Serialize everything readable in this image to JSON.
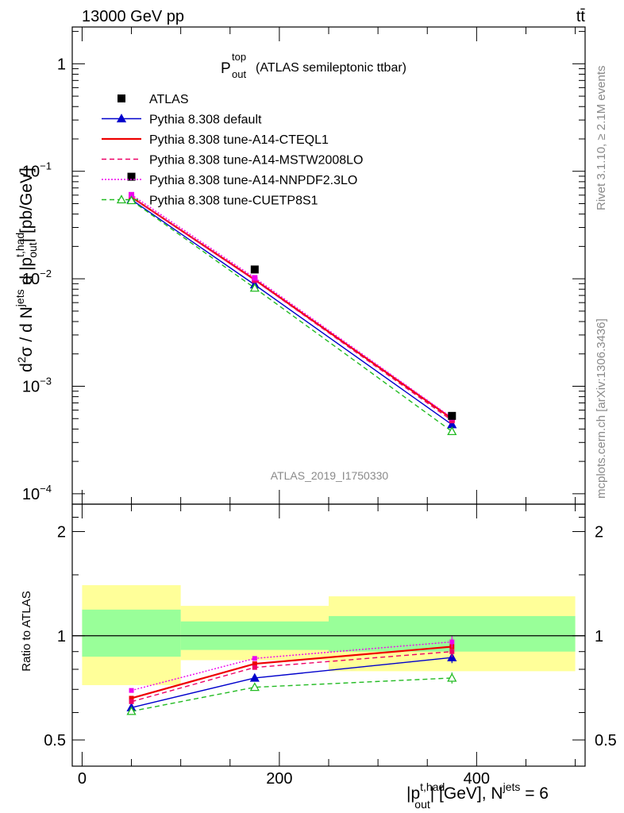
{
  "header": {
    "energy": "13000 GeV pp",
    "process": "tt̄",
    "rivet": "Rivet 3.1.10, ≥ 2.1M events",
    "site": "mcplots.cern.ch [arXiv:1306.3436]",
    "analysis": "ATLAS_2019_I1750330"
  },
  "plot_title": {
    "main": "P",
    "sup": "top",
    "sub": "out",
    "rest": "(ATLAS semileptonic ttbar)"
  },
  "axes": {
    "ylabel_main": "d²σ / d N^jets d |p_out^t,had| [pb/GeV]",
    "ylabel_ratio": "Ratio to ATLAS",
    "xlabel": "|p_out^t,had| [GeV], N^jets = 6",
    "main_ticks": [
      "1",
      "10^-1",
      "10^-2",
      "10^-3",
      "10^-4"
    ],
    "ratio_ticks": [
      "2",
      "1",
      "0.5"
    ],
    "x_ticks": [
      "0",
      "200",
      "400"
    ]
  },
  "legend": [
    {
      "label": "ATLAS",
      "color": "#000000",
      "marker": "square",
      "line": "none"
    },
    {
      "label": "Pythia 8.308 default",
      "color": "#0000cc",
      "marker": "triangle",
      "line": "solid"
    },
    {
      "label": "Pythia 8.308 tune-A14-CTEQL1",
      "color": "#ee0000",
      "marker": "none",
      "line": "solid-thick"
    },
    {
      "label": "Pythia 8.308 tune-A14-MSTW2008LO",
      "color": "#ee0066",
      "marker": "none",
      "line": "dashed"
    },
    {
      "label": "Pythia 8.308 tune-A14-NNPDF2.3LO",
      "color": "#ee00ee",
      "marker": "none",
      "line": "dotted"
    },
    {
      "label": "Pythia 8.308 tune-CUETP8S1",
      "color": "#22bb22",
      "marker": "open-triangle",
      "line": "dashed"
    }
  ],
  "chart_data": {
    "type": "line",
    "x_scale": "linear",
    "xlim": [
      -10,
      510
    ],
    "main": {
      "y_scale": "log",
      "ylim": [
        8e-05,
        2.2
      ],
      "data": {
        "x": [
          50,
          175,
          375
        ],
        "y": [
          0.089,
          0.0122,
          0.00053
        ],
        "bins": [
          [
            0,
            100
          ],
          [
            100,
            250
          ],
          [
            250,
            500
          ]
        ]
      },
      "series": [
        {
          "name": "Pythia 8.308 default",
          "x": [
            50,
            175,
            375
          ],
          "y": [
            0.0545,
            0.0088,
            0.00044
          ]
        },
        {
          "name": "Pythia 8.308 tune-A14-CTEQL1",
          "x": [
            50,
            175,
            375
          ],
          "y": [
            0.0576,
            0.0098,
            0.0005
          ]
        },
        {
          "name": "Pythia 8.308 tune-A14-MSTW2008LO",
          "x": [
            50,
            175,
            375
          ],
          "y": [
            0.0576,
            0.0097,
            0.00048
          ]
        },
        {
          "name": "Pythia 8.308 tune-A14-NNPDF2.3LO",
          "x": [
            50,
            175,
            375
          ],
          "y": [
            0.0605,
            0.0102,
            0.00051
          ]
        },
        {
          "name": "Pythia 8.308 tune-CUETP8S1",
          "x": [
            50,
            175,
            375
          ],
          "y": [
            0.0535,
            0.0082,
            0.00038
          ]
        }
      ]
    },
    "ratio": {
      "y_scale": "log",
      "ylim": [
        0.42,
        2.4
      ],
      "band_inner": [
        {
          "x": [
            0,
            100
          ],
          "lo": 0.87,
          "hi": 1.19
        },
        {
          "x": [
            100,
            250
          ],
          "lo": 0.91,
          "hi": 1.1
        },
        {
          "x": [
            250,
            500
          ],
          "lo": 0.9,
          "hi": 1.14
        }
      ],
      "band_outer": [
        {
          "x": [
            0,
            100
          ],
          "lo": 0.72,
          "hi": 1.4
        },
        {
          "x": [
            100,
            250
          ],
          "lo": 0.85,
          "hi": 1.22
        },
        {
          "x": [
            250,
            500
          ],
          "lo": 0.79,
          "hi": 1.3
        }
      ],
      "series": [
        {
          "name": "Pythia 8.308 default",
          "x": [
            50,
            175,
            375
          ],
          "y": [
            0.62,
            0.755,
            0.865
          ]
        },
        {
          "name": "Pythia 8.308 tune-A14-CTEQL1",
          "x": [
            50,
            175,
            375
          ],
          "y": [
            0.66,
            0.83,
            0.93
          ]
        },
        {
          "name": "Pythia 8.308 tune-A14-MSTW2008LO",
          "x": [
            50,
            175,
            375
          ],
          "y": [
            0.645,
            0.81,
            0.9
          ]
        },
        {
          "name": "Pythia 8.308 tune-A14-NNPDF2.3LO",
          "x": [
            50,
            175,
            375
          ],
          "y": [
            0.695,
            0.86,
            0.96
          ]
        },
        {
          "name": "Pythia 8.308 tune-CUETP8S1",
          "x": [
            50,
            175,
            375
          ],
          "y": [
            0.605,
            0.71,
            0.755
          ]
        }
      ]
    }
  }
}
